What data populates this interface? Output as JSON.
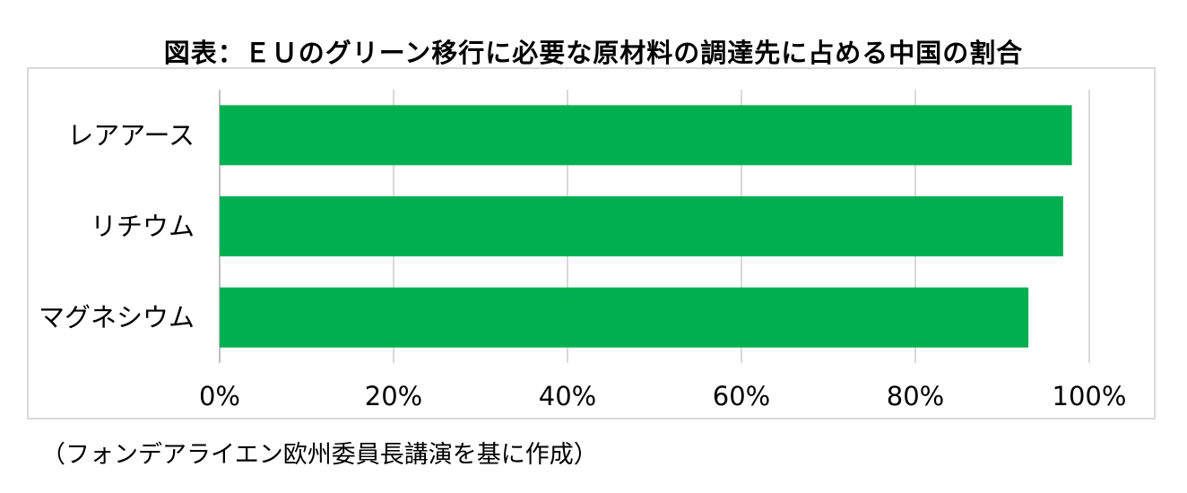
{
  "title": "図表：ＥＵのグリーン移行に必要な原材料の調達先に占める中国の割合",
  "source": "（フォンデアライエン欧州委員長講演を基に作成）",
  "colors": {
    "bar": "#00b050",
    "grid": "#d9d9d9",
    "axis": "#bfbfbf",
    "text": "#000000"
  },
  "chart_data": {
    "type": "bar",
    "orientation": "horizontal",
    "categories": [
      "レアアース",
      "リチウム",
      "マグネシウム"
    ],
    "values": [
      98,
      97,
      93
    ],
    "xlim": [
      0,
      100
    ],
    "ticks": [
      0,
      20,
      40,
      60,
      80,
      100
    ],
    "tick_labels": [
      "0%",
      "20%",
      "40%",
      "60%",
      "80%",
      "100%"
    ],
    "grid": true,
    "legend": "none",
    "title": "図表：ＥＵのグリーン移行に必要な原材料の調達先に占める中国の割合",
    "xlabel": "",
    "ylabel": ""
  }
}
